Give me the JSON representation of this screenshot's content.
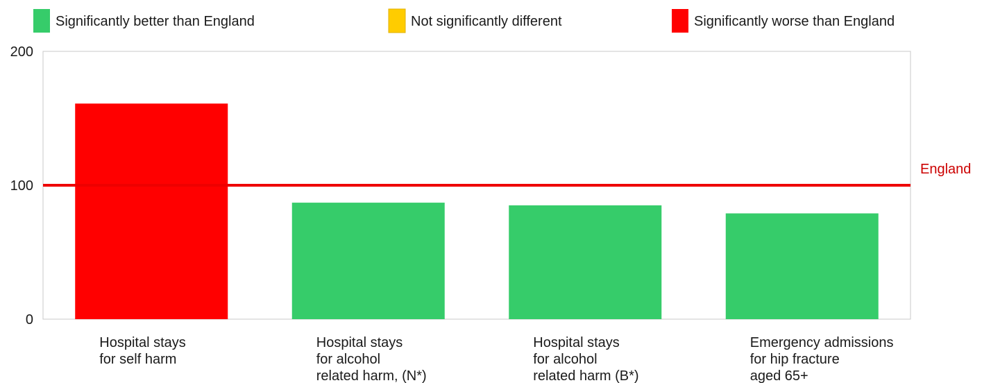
{
  "legend": {
    "items": [
      {
        "label": "Significantly better than England",
        "color": "#36cc6a"
      },
      {
        "label": "Not significantly different",
        "color": "#ffcc00"
      },
      {
        "label": "Significantly worse than England",
        "color": "#ff0000"
      }
    ]
  },
  "chart_data": {
    "type": "bar",
    "categories": [
      [
        "Hospital stays",
        "for self harm"
      ],
      [
        "Hospital stays",
        "for alcohol",
        "related harm, (N*)"
      ],
      [
        "Hospital stays",
        "for alcohol",
        "related harm (B*)"
      ],
      [
        "Emergency admissions",
        "for hip fracture",
        "aged 65+"
      ]
    ],
    "values": [
      161,
      87,
      85,
      79
    ],
    "bar_colors": [
      "#ff0000",
      "#36cc6a",
      "#36cc6a",
      "#36cc6a"
    ],
    "ylim": [
      0,
      200
    ],
    "yticks": [
      0,
      100,
      200
    ],
    "reference_line": {
      "label": "England",
      "value": 100,
      "color": "#ee0000"
    },
    "grid": false,
    "legend_position": "top"
  }
}
